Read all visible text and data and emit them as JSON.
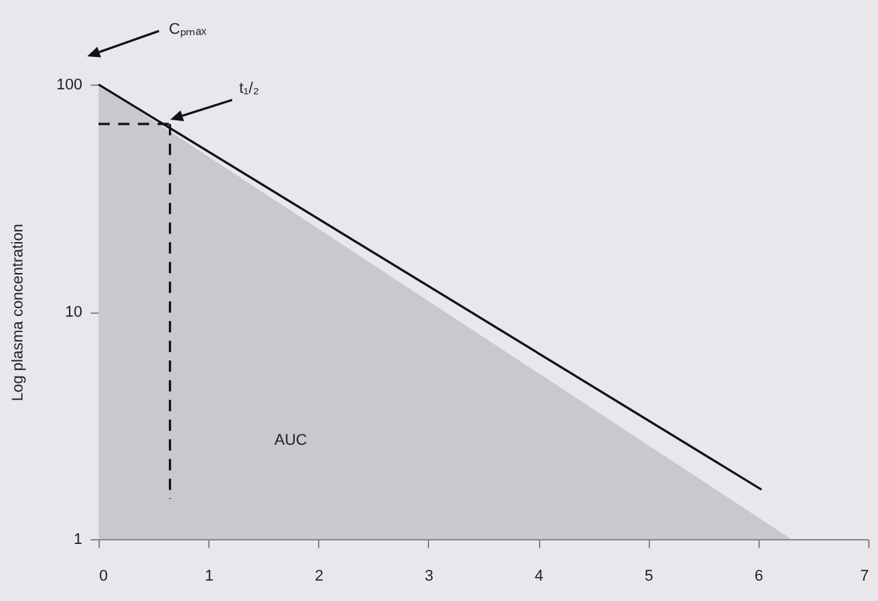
{
  "chart_data": {
    "type": "line",
    "ylabel": "Log plasma concentration",
    "log": "y",
    "xlim": [
      0,
      7
    ],
    "xticks": [
      0,
      1,
      2,
      3,
      4,
      5,
      6,
      7
    ],
    "ylim": [
      1,
      100
    ],
    "yticks": [
      1,
      10,
      100
    ],
    "grid": false,
    "marker": "none",
    "series": [
      {
        "type": "area",
        "color": "#c9c8cc",
        "x": [
          0,
          6.3
        ],
        "values": [
          100,
          1
        ]
      },
      {
        "color": "#111111",
        "x": [
          0,
          6.03
        ],
        "values": [
          100,
          1.65
        ]
      },
      {
        "color": "#111111",
        "line_style": "dashed",
        "x": [
          0,
          0.65
        ],
        "values": [
          67,
          67
        ]
      },
      {
        "color": "#111111",
        "line_style": "dashed",
        "x": [
          0.65,
          0.65
        ],
        "values": [
          67,
          1.5
        ]
      }
    ],
    "annotations": [
      "Cₚₘₐₓ",
      "t₁/₂",
      "AUC"
    ]
  }
}
